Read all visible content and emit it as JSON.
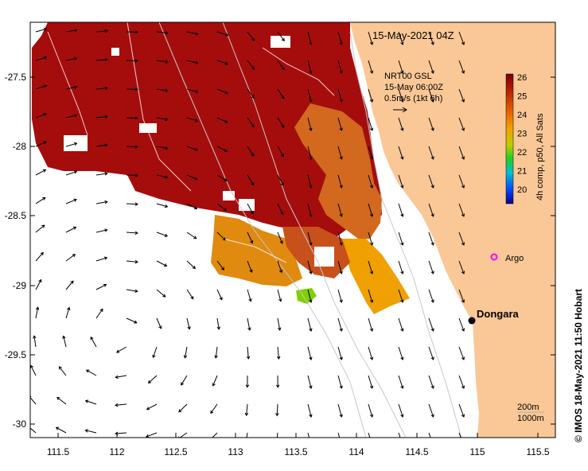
{
  "title": "15-May-2021 04Z",
  "current_info": {
    "line1": "NRT00 GSL",
    "line2": "15-May 06:00Z",
    "line3": "0.5m/s (1kt 6h)"
  },
  "colorbar": {
    "label": "4h comp, p50, All Sats",
    "ticks": [
      "26",
      "25",
      "24",
      "23",
      "22",
      "21",
      "20"
    ],
    "colors": [
      "#a50f0f",
      "#c0392b",
      "#e65c00",
      "#f39c12",
      "#d4d400",
      "#7ccf00",
      "#00c8c8",
      "#0064ff",
      "#0000a0",
      "#000064"
    ]
  },
  "places": {
    "argo_label": "Argo",
    "dongara_label": "Dongara"
  },
  "bathymetry_legend": {
    "line1": "200m",
    "line2": "1000m"
  },
  "credit": "© IMOS 18-May-2021 11:50 Hobart",
  "axes": {
    "x_ticks": [
      "111.5",
      "112",
      "112.5",
      "113",
      "113.5",
      "114",
      "114.5",
      "115",
      "115.5"
    ],
    "y_ticks": [
      "-27.5",
      "-28",
      "-28.5",
      "-29",
      "-29.5",
      "-30"
    ]
  },
  "colors": {
    "land": "#fac896",
    "sst_hot": "#a00c0c",
    "argo": "#ff00ff"
  }
}
